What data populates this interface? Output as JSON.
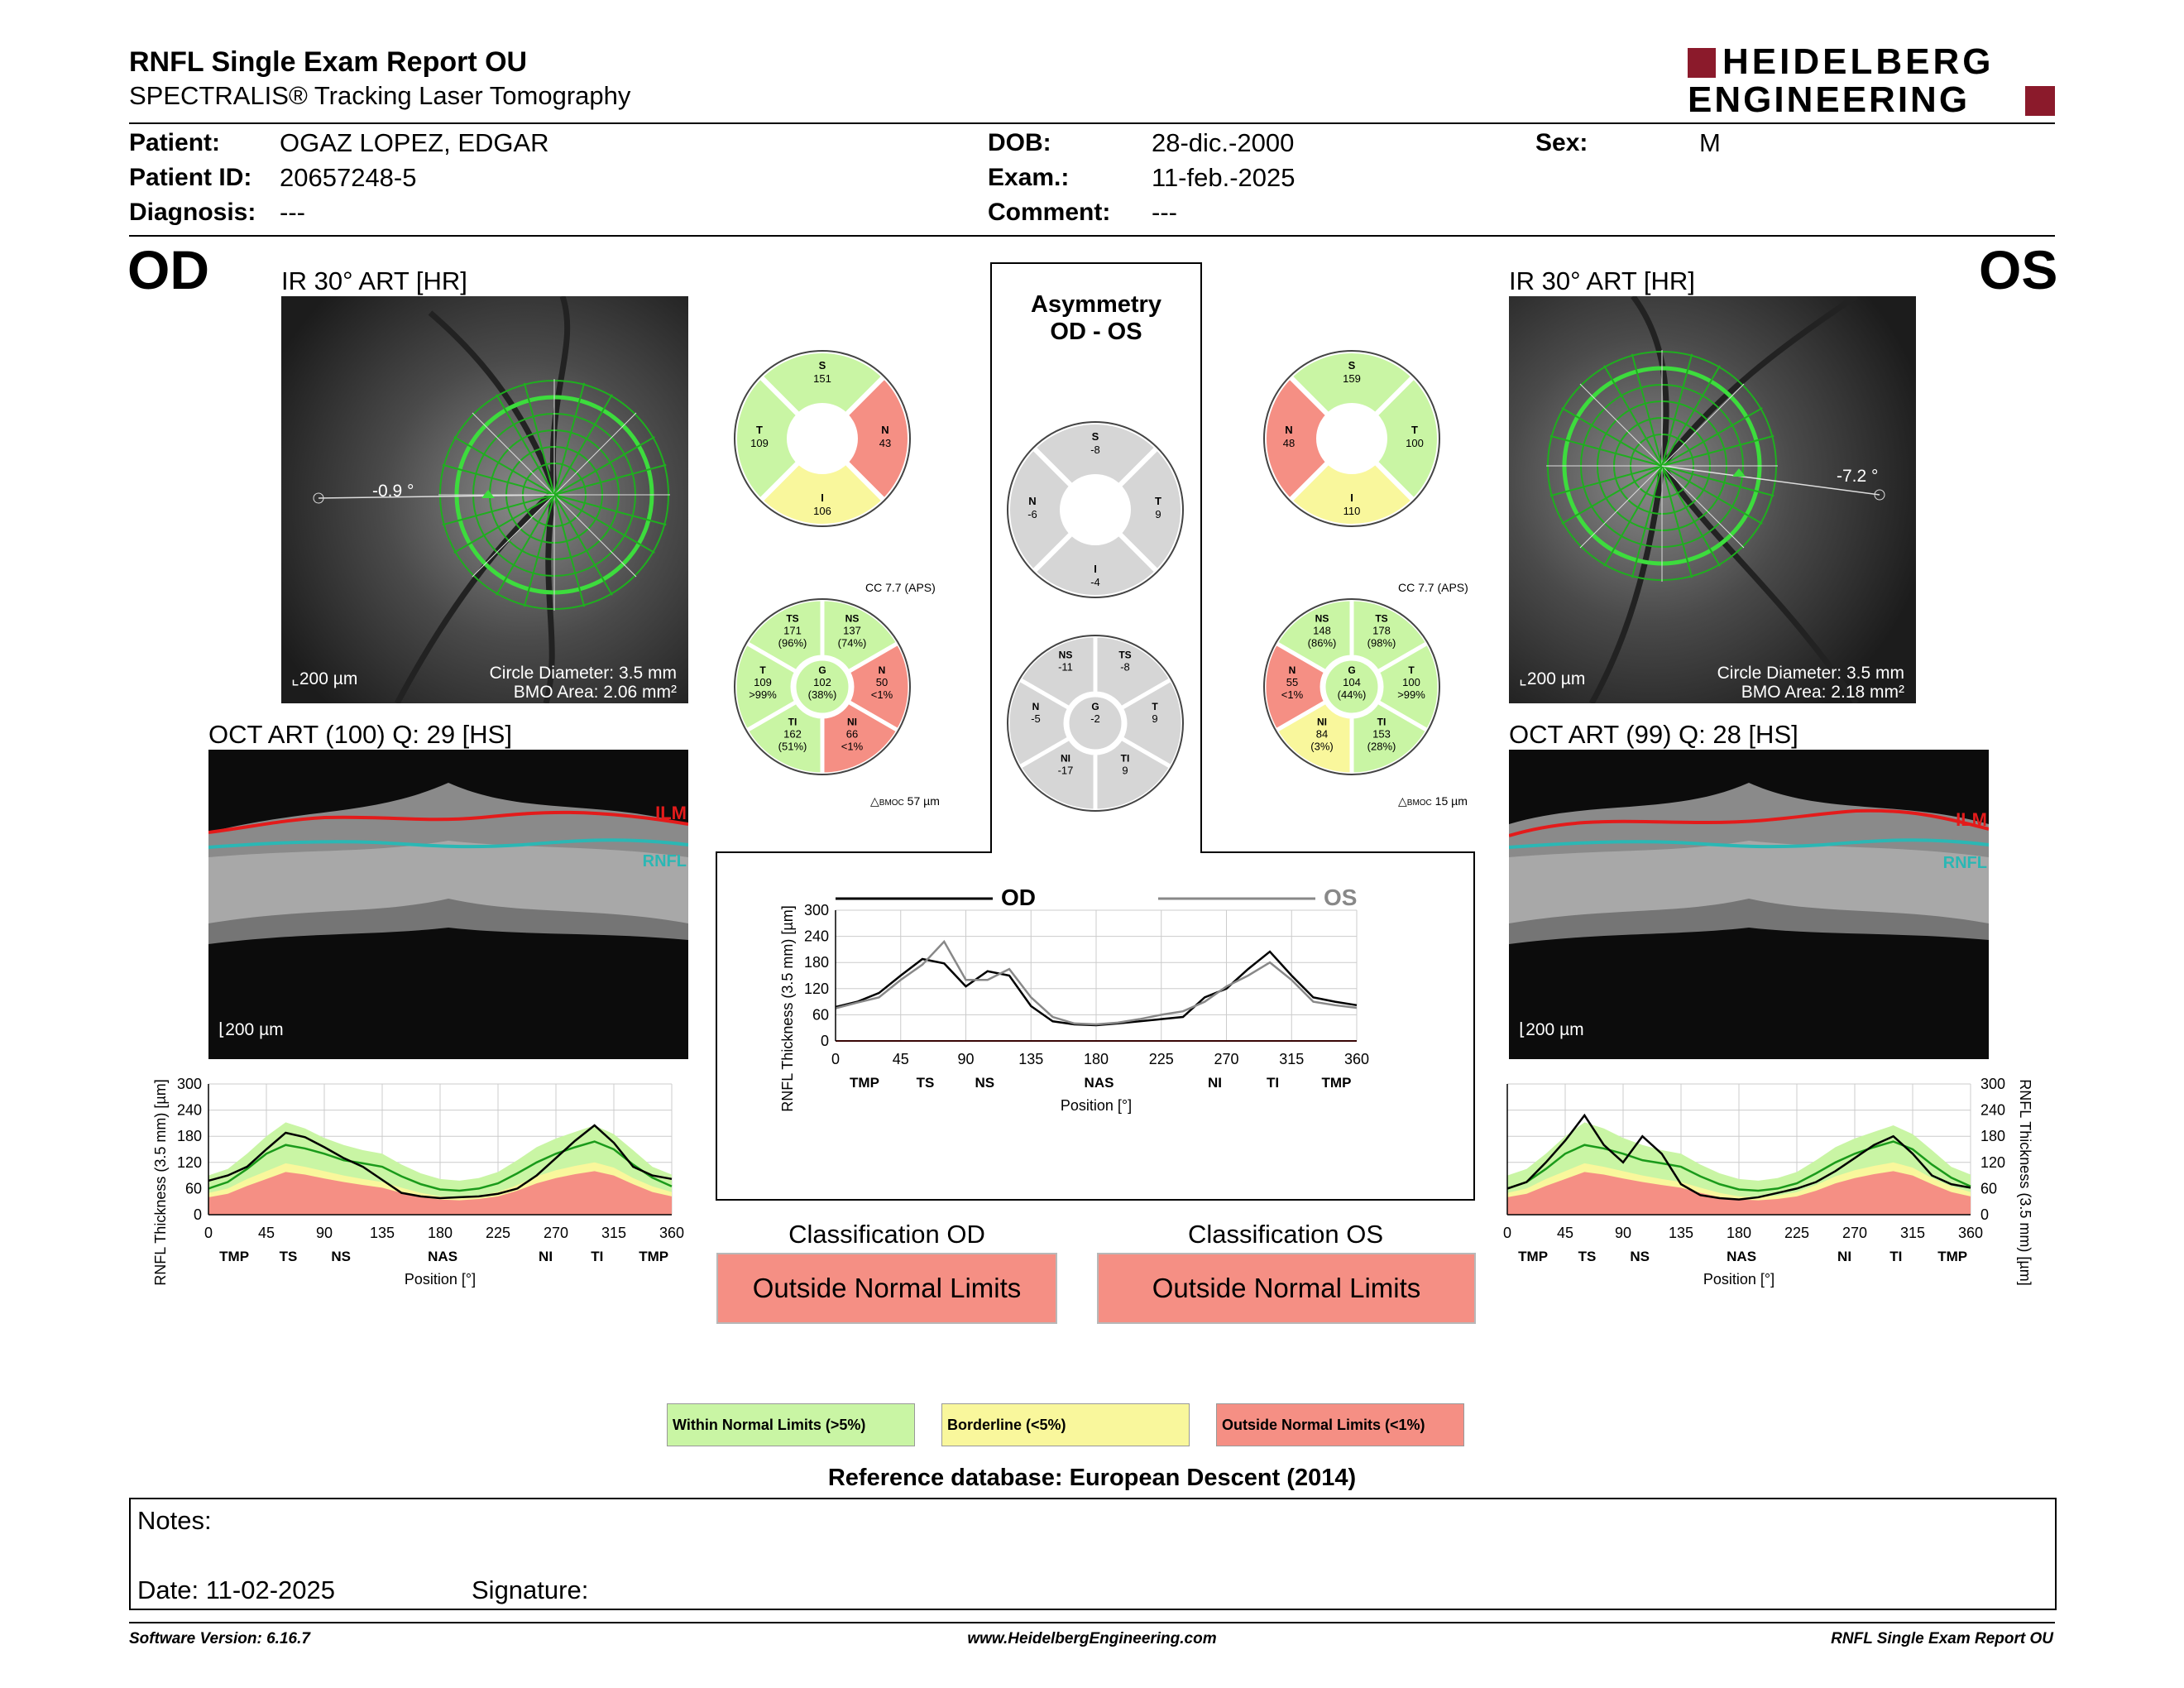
{
  "header": {
    "title": "RNFL Single Exam Report OU",
    "subtitle": "SPECTRALIS® Tracking Laser Tomography",
    "logo_line1": "HEIDELBERG",
    "logo_line2": "ENGINEERING"
  },
  "patient": {
    "patient_label": "Patient:",
    "patient_value": "OGAZ LOPEZ, EDGAR",
    "id_label": "Patient ID:",
    "id_value": "20657248-5",
    "diagnosis_label": "Diagnosis:",
    "diagnosis_value": "---",
    "dob_label": "DOB:",
    "dob_value": "28-dic.-2000",
    "exam_label": "Exam.:",
    "exam_value": "11-feb.-2025",
    "comment_label": "Comment:",
    "comment_value": "---",
    "sex_label": "Sex:",
    "sex_value": "M"
  },
  "od": {
    "eye": "OD",
    "ir_label": "IR 30° ART [HR]",
    "angle": "-0.9 °",
    "scale": "200 µm",
    "circle_diameter": "Circle Diameter: 3.5 mm",
    "bmo_area": "BMO Area: 2.06 mm²",
    "oct_label": "OCT ART (100) Q: 29 [HS]",
    "oct_scale": "200 µm",
    "ilm": "ILM",
    "rnfl": "RNFL",
    "cc": "CC 7.7 (APS)",
    "bmoc": "57 µm",
    "bmoc_label": "BMOC",
    "sectors6": {
      "S": {
        "label": "S",
        "value": "151",
        "color": "green"
      },
      "T": {
        "label": "T",
        "value": "109",
        "color": "green"
      },
      "N": {
        "label": "N",
        "value": "43",
        "color": "red"
      },
      "I": {
        "label": "I",
        "value": "106",
        "color": "yellow"
      }
    },
    "sectors": {
      "TS": {
        "label": "TS",
        "value": "171",
        "pct": "(96%)",
        "color": "green"
      },
      "NS": {
        "label": "NS",
        "value": "137",
        "pct": "(74%)",
        "color": "green"
      },
      "T": {
        "label": "T",
        "value": "109",
        "pct": ">99%",
        "color": "green"
      },
      "G": {
        "label": "G",
        "value": "102",
        "pct": "(38%)",
        "color": "green"
      },
      "N": {
        "label": "N",
        "value": "50",
        "pct": "<1%",
        "color": "red"
      },
      "TI": {
        "label": "TI",
        "value": "162",
        "pct": "(51%)",
        "color": "green"
      },
      "NI": {
        "label": "NI",
        "value": "66",
        "pct": "<1%",
        "color": "red"
      }
    }
  },
  "os": {
    "eye": "OS",
    "ir_label": "IR 30° ART [HR]",
    "angle": "-7.2 °",
    "scale": "200 µm",
    "circle_diameter": "Circle Diameter: 3.5 mm",
    "bmo_area": "BMO Area: 2.18 mm²",
    "oct_label": "OCT ART (99) Q: 28 [HS]",
    "oct_scale": "200 µm",
    "ilm": "ILM",
    "rnfl": "RNFL",
    "cc": "CC 7.7 (APS)",
    "bmoc": "15 µm",
    "bmoc_label": "BMOC",
    "sectors6": {
      "S": {
        "label": "S",
        "value": "159",
        "color": "green"
      },
      "N": {
        "label": "N",
        "value": "48",
        "color": "red"
      },
      "T": {
        "label": "T",
        "value": "100",
        "color": "green"
      },
      "I": {
        "label": "I",
        "value": "110",
        "color": "yellow"
      }
    },
    "sectors": {
      "NS": {
        "label": "NS",
        "value": "148",
        "pct": "(86%)",
        "color": "green"
      },
      "TS": {
        "label": "TS",
        "value": "178",
        "pct": "(98%)",
        "color": "green"
      },
      "N": {
        "label": "N",
        "value": "55",
        "pct": "<1%",
        "color": "red"
      },
      "G": {
        "label": "G",
        "value": "104",
        "pct": "(44%)",
        "color": "green"
      },
      "T": {
        "label": "T",
        "value": "100",
        "pct": ">99%",
        "color": "green"
      },
      "NI": {
        "label": "NI",
        "value": "84",
        "pct": "(3%)",
        "color": "yellow"
      },
      "TI": {
        "label": "TI",
        "value": "153",
        "pct": "(28%)",
        "color": "green"
      }
    }
  },
  "asymmetry": {
    "title1": "Asymmetry",
    "title2": "OD - OS",
    "sectors6": {
      "S": {
        "label": "S",
        "value": "-8"
      },
      "N": {
        "label": "N",
        "value": "-6"
      },
      "T": {
        "label": "T",
        "value": "9"
      },
      "I": {
        "label": "I",
        "value": "-4"
      }
    },
    "sectors": {
      "NS": {
        "label": "NS",
        "value": "-11"
      },
      "TS": {
        "label": "TS",
        "value": "-8"
      },
      "N": {
        "label": "N",
        "value": "-5"
      },
      "G": {
        "label": "G",
        "value": "-2"
      },
      "T": {
        "label": "T",
        "value": "9"
      },
      "NI": {
        "label": "NI",
        "value": "-17"
      },
      "TI": {
        "label": "TI",
        "value": "9"
      }
    }
  },
  "classification": {
    "od_label": "Classification OD",
    "od_value": "Outside Normal Limits",
    "os_label": "Classification OS",
    "os_value": "Outside Normal Limits"
  },
  "legend": {
    "within": "Within Normal Limits (>5%)",
    "borderline": "Borderline (<5%)",
    "outside": "Outside Normal Limits (<1%)"
  },
  "reference": "Reference database: European Descent (2014)",
  "notes": {
    "notes_label": "Notes:",
    "date_label": "Date: 11-02-2025",
    "signature_label": "Signature:"
  },
  "footer": {
    "version": "Software Version: 6.16.7",
    "url": "www.HeidelbergEngineering.com",
    "report": "RNFL Single Exam Report OU"
  },
  "colors": {
    "green": "#c9f5a4",
    "yellow": "#f9f79c",
    "red": "#f58f84",
    "gray": "#d6d6d6",
    "brand": "#8b1a2b"
  },
  "chart_data": [
    {
      "type": "line",
      "name": "od-profile",
      "xlabel": "Position [°]",
      "ylabel": "RNFL Thickness (3.5 mm) [µm]",
      "xlim": [
        0,
        360
      ],
      "ylim": [
        0,
        300
      ],
      "xticks": [
        0,
        45,
        90,
        135,
        180,
        225,
        270,
        315,
        360
      ],
      "yticks": [
        0,
        60,
        120,
        180,
        240,
        300
      ],
      "sector_labels": [
        {
          "x": 20,
          "t": "TMP"
        },
        {
          "x": 62,
          "t": "TS"
        },
        {
          "x": 103,
          "t": "NS"
        },
        {
          "x": 182,
          "t": "NAS"
        },
        {
          "x": 262,
          "t": "NI"
        },
        {
          "x": 302,
          "t": "TI"
        },
        {
          "x": 346,
          "t": "TMP"
        }
      ],
      "x": [
        0,
        15,
        30,
        45,
        60,
        75,
        90,
        105,
        120,
        135,
        150,
        165,
        180,
        195,
        210,
        225,
        240,
        255,
        270,
        285,
        300,
        315,
        330,
        345,
        360
      ],
      "series": [
        {
          "role": "measured",
          "values": [
            78,
            90,
            110,
            150,
            188,
            178,
            155,
            130,
            110,
            80,
            50,
            42,
            38,
            40,
            42,
            48,
            60,
            90,
            130,
            170,
            205,
            165,
            110,
            90,
            82
          ]
        },
        {
          "role": "normal_mean",
          "values": [
            60,
            75,
            105,
            140,
            160,
            152,
            140,
            125,
            118,
            110,
            88,
            70,
            58,
            55,
            60,
            72,
            95,
            120,
            140,
            155,
            168,
            150,
            115,
            85,
            65
          ]
        },
        {
          "role": "band_within_upper",
          "values": [
            90,
            105,
            140,
            180,
            212,
            198,
            176,
            160,
            148,
            140,
            115,
            95,
            82,
            78,
            84,
            98,
            125,
            155,
            175,
            190,
            205,
            185,
            148,
            110,
            92
          ]
        },
        {
          "role": "band_borderline_upper",
          "values": [
            50,
            60,
            82,
            100,
            118,
            110,
            100,
            90,
            82,
            75,
            62,
            50,
            42,
            40,
            44,
            52,
            68,
            88,
            102,
            112,
            120,
            108,
            84,
            65,
            52
          ]
        },
        {
          "role": "band_outside_upper",
          "values": [
            40,
            48,
            66,
            82,
            98,
            92,
            83,
            75,
            68,
            62,
            50,
            40,
            35,
            33,
            36,
            42,
            55,
            72,
            84,
            93,
            100,
            90,
            70,
            52,
            42
          ]
        }
      ]
    },
    {
      "type": "line",
      "name": "os-profile",
      "xlabel": "Position [°]",
      "ylabel": "RNFL Thickness (3.5 mm) [µm]",
      "xlim": [
        0,
        360
      ],
      "ylim": [
        0,
        300
      ],
      "xticks": [
        0,
        45,
        90,
        135,
        180,
        225,
        270,
        315,
        360
      ],
      "yticks": [
        0,
        60,
        120,
        180,
        240,
        300
      ],
      "sector_labels": [
        {
          "x": 20,
          "t": "TMP"
        },
        {
          "x": 62,
          "t": "TS"
        },
        {
          "x": 103,
          "t": "NS"
        },
        {
          "x": 182,
          "t": "NAS"
        },
        {
          "x": 262,
          "t": "NI"
        },
        {
          "x": 302,
          "t": "TI"
        },
        {
          "x": 346,
          "t": "TMP"
        }
      ],
      "x": [
        0,
        15,
        30,
        45,
        60,
        75,
        90,
        105,
        120,
        135,
        150,
        165,
        180,
        195,
        210,
        225,
        240,
        255,
        270,
        285,
        300,
        315,
        330,
        345,
        360
      ],
      "series": [
        {
          "role": "measured",
          "values": [
            60,
            75,
            120,
            170,
            228,
            160,
            120,
            180,
            140,
            70,
            45,
            38,
            35,
            40,
            50,
            60,
            75,
            100,
            130,
            160,
            180,
            140,
            90,
            70,
            62
          ]
        },
        {
          "role": "normal_mean",
          "values": [
            60,
            75,
            105,
            140,
            160,
            152,
            140,
            125,
            118,
            110,
            88,
            70,
            58,
            55,
            60,
            72,
            95,
            120,
            140,
            155,
            168,
            150,
            115,
            85,
            65
          ]
        },
        {
          "role": "band_within_upper",
          "values": [
            90,
            105,
            140,
            180,
            212,
            198,
            176,
            160,
            148,
            140,
            115,
            95,
            82,
            78,
            84,
            98,
            125,
            155,
            175,
            190,
            205,
            185,
            148,
            110,
            92
          ]
        },
        {
          "role": "band_borderline_upper",
          "values": [
            50,
            60,
            82,
            100,
            118,
            110,
            100,
            90,
            82,
            75,
            62,
            50,
            42,
            40,
            44,
            52,
            68,
            88,
            102,
            112,
            120,
            108,
            84,
            65,
            52
          ]
        },
        {
          "role": "band_outside_upper",
          "values": [
            40,
            48,
            66,
            82,
            98,
            92,
            83,
            75,
            68,
            62,
            50,
            40,
            35,
            33,
            36,
            42,
            55,
            72,
            84,
            93,
            100,
            90,
            70,
            52,
            42
          ]
        }
      ]
    },
    {
      "type": "line",
      "name": "asymmetry-profile",
      "xlabel": "Position [°]",
      "ylabel": "RNFL Thickness (3.5 mm) [µm]",
      "xlim": [
        0,
        360
      ],
      "ylim": [
        0,
        300
      ],
      "xticks": [
        0,
        45,
        90,
        135,
        180,
        225,
        270,
        315,
        360
      ],
      "yticks": [
        0,
        60,
        120,
        180,
        240,
        300
      ],
      "legend": [
        "OD",
        "OS"
      ],
      "sector_labels": [
        {
          "x": 20,
          "t": "TMP"
        },
        {
          "x": 62,
          "t": "TS"
        },
        {
          "x": 103,
          "t": "NS"
        },
        {
          "x": 182,
          "t": "NAS"
        },
        {
          "x": 262,
          "t": "NI"
        },
        {
          "x": 302,
          "t": "TI"
        },
        {
          "x": 346,
          "t": "TMP"
        }
      ],
      "x": [
        0,
        15,
        30,
        45,
        60,
        75,
        90,
        105,
        120,
        135,
        150,
        165,
        180,
        195,
        210,
        225,
        240,
        255,
        270,
        285,
        300,
        315,
        330,
        345,
        360
      ],
      "series": [
        {
          "name": "OD",
          "values": [
            78,
            90,
            110,
            150,
            188,
            178,
            125,
            160,
            150,
            80,
            45,
            38,
            36,
            40,
            45,
            50,
            55,
            100,
            120,
            165,
            205,
            150,
            100,
            90,
            82
          ]
        },
        {
          "name": "OS",
          "values": [
            75,
            88,
            100,
            140,
            175,
            228,
            140,
            140,
            165,
            100,
            55,
            40,
            38,
            42,
            50,
            60,
            68,
            90,
            125,
            150,
            180,
            140,
            90,
            82,
            76
          ]
        }
      ]
    }
  ]
}
